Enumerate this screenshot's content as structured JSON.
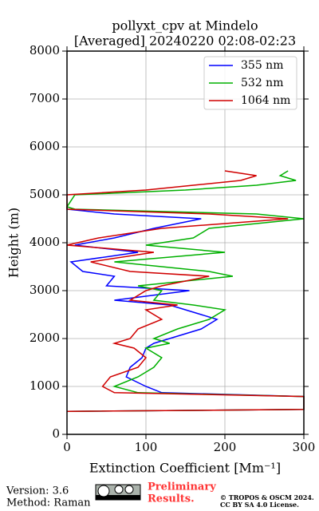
{
  "chart_data": {
    "type": "line",
    "title": [
      "pollyxt_cpv at Mindelo",
      "[Averaged] 20240220 02:08-02:23"
    ],
    "xlabel": "Extinction Coefficient [Mm⁻¹]",
    "ylabel": "Height (m)",
    "y": [
      480,
      520,
      790,
      870,
      1000,
      1200,
      1400,
      1600,
      1800,
      1900,
      2000,
      2200,
      2400,
      2600,
      2700,
      2800,
      3000,
      3100,
      3300,
      3400,
      3600,
      3800,
      3950,
      4100,
      4300,
      4500,
      4600,
      4700,
      4750,
      5000,
      5100,
      5200,
      5300,
      5400,
      5500
    ],
    "series": [
      {
        "name": "355 nm",
        "color": "#0000ff",
        "values": [
          0,
          300,
          300,
          120,
          100,
          75,
          80,
          95,
          100,
          110,
          130,
          170,
          190,
          150,
          130,
          60,
          155,
          50,
          60,
          20,
          5,
          90,
          10,
          60,
          110,
          170,
          60,
          0,
          0,
          null,
          null,
          null,
          null,
          null,
          null
        ]
      },
      {
        "name": "532 nm",
        "color": "#00b000",
        "values": [
          0,
          300,
          300,
          90,
          60,
          90,
          110,
          120,
          100,
          130,
          110,
          140,
          180,
          200,
          160,
          110,
          120,
          90,
          210,
          180,
          60,
          200,
          100,
          160,
          180,
          300,
          240,
          10,
          0,
          10,
          150,
          240,
          290,
          270,
          280
        ]
      },
      {
        "name": "1064 nm",
        "color": "#d00000",
        "values": [
          0,
          300,
          300,
          60,
          45,
          55,
          90,
          100,
          85,
          60,
          80,
          90,
          120,
          100,
          140,
          80,
          100,
          120,
          180,
          80,
          30,
          110,
          0,
          40,
          120,
          280,
          180,
          0,
          0,
          0,
          100,
          160,
          220,
          240,
          200
        ]
      }
    ],
    "xlim": [
      0,
      300
    ],
    "xticks": [
      0,
      100,
      200,
      300
    ],
    "ylim": [
      0,
      8000
    ],
    "yticks": [
      0,
      1000,
      2000,
      3000,
      4000,
      5000,
      6000,
      7000,
      8000
    ],
    "grid": true,
    "legend": "upper right"
  },
  "footer": {
    "version": "Version: 3.6",
    "method": "Method: Raman",
    "status": [
      "Preliminary",
      "Results."
    ],
    "copyright": [
      "© TROPOS & OSCM 2024.",
      "CC BY SA 4.0 License."
    ]
  }
}
